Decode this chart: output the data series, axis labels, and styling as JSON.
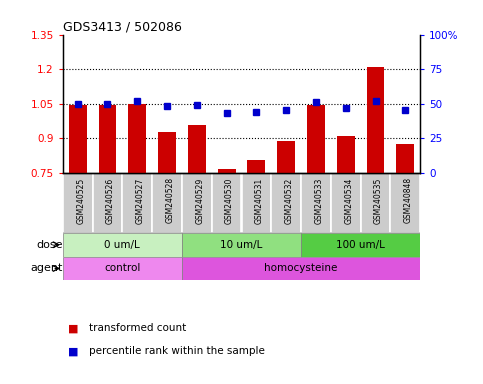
{
  "title": "GDS3413 / 502086",
  "samples": [
    "GSM240525",
    "GSM240526",
    "GSM240527",
    "GSM240528",
    "GSM240529",
    "GSM240530",
    "GSM240531",
    "GSM240532",
    "GSM240533",
    "GSM240534",
    "GSM240535",
    "GSM240848"
  ],
  "red_values": [
    1.045,
    1.045,
    1.05,
    0.925,
    0.955,
    0.765,
    0.805,
    0.885,
    1.045,
    0.91,
    1.21,
    0.875
  ],
  "blue_values": [
    50,
    50,
    52,
    48,
    49,
    43,
    44,
    45,
    51,
    47,
    52,
    45
  ],
  "ylim_left": [
    0.75,
    1.35
  ],
  "ylim_right": [
    0,
    100
  ],
  "yticks_left": [
    0.75,
    0.9,
    1.05,
    1.2,
    1.35
  ],
  "yticks_right": [
    0,
    25,
    50,
    75,
    100
  ],
  "ytick_labels_left": [
    "0.75",
    "0.9",
    "1.05",
    "1.2",
    "1.35"
  ],
  "ytick_labels_right": [
    "0",
    "25",
    "50",
    "75",
    "100%"
  ],
  "hlines": [
    0.9,
    1.05,
    1.2
  ],
  "dose_groups": [
    {
      "label": "0 um/L",
      "start": 0,
      "end": 4,
      "color": "#C8F0C0"
    },
    {
      "label": "10 um/L",
      "start": 4,
      "end": 8,
      "color": "#90E080"
    },
    {
      "label": "100 um/L",
      "start": 8,
      "end": 12,
      "color": "#55CC44"
    }
  ],
  "agent_groups": [
    {
      "label": "control",
      "start": 0,
      "end": 4,
      "color": "#EE88EE"
    },
    {
      "label": "homocysteine",
      "start": 4,
      "end": 12,
      "color": "#DD55DD"
    }
  ],
  "bar_color": "#CC0000",
  "dot_color": "#0000CC",
  "legend_red": "transformed count",
  "legend_blue": "percentile rank within the sample",
  "dose_label": "dose",
  "agent_label": "agent",
  "bar_width": 0.6,
  "sample_box_color": "#CCCCCC"
}
